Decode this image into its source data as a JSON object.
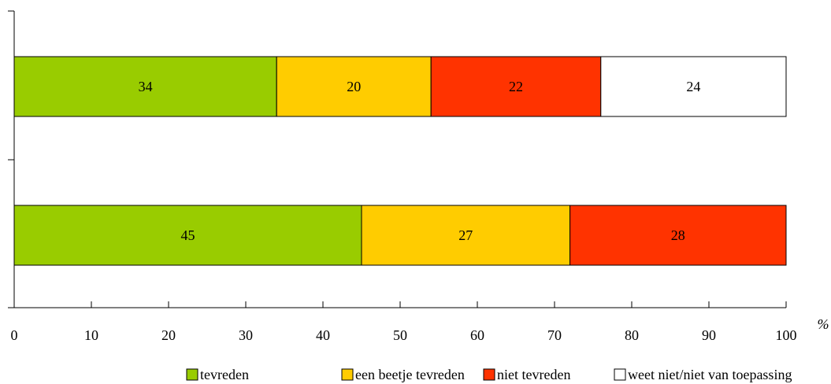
{
  "chart_data": {
    "type": "bar",
    "orientation": "horizontal",
    "stacked": true,
    "title": "",
    "xlabel": "%",
    "ylabel": "",
    "xlim": [
      0,
      100
    ],
    "x_ticks": [
      "0",
      "10",
      "20",
      "30",
      "40",
      "50",
      "60",
      "70",
      "80",
      "90",
      "100"
    ],
    "grid": false,
    "legend_position": "bottom",
    "categories": [
      "",
      ""
    ],
    "series": [
      {
        "name": "tevreden",
        "color": "#99CC00",
        "values": [
          34,
          45
        ]
      },
      {
        "name": "een beetje tevreden",
        "color": "#FFCC00",
        "values": [
          20,
          27
        ]
      },
      {
        "name": "niet tevreden",
        "color": "#FF3300",
        "values": [
          22,
          28
        ]
      },
      {
        "name": "weet niet/niet van toepassing",
        "color": "#FFFFFF",
        "values": [
          24,
          0
        ]
      }
    ]
  }
}
